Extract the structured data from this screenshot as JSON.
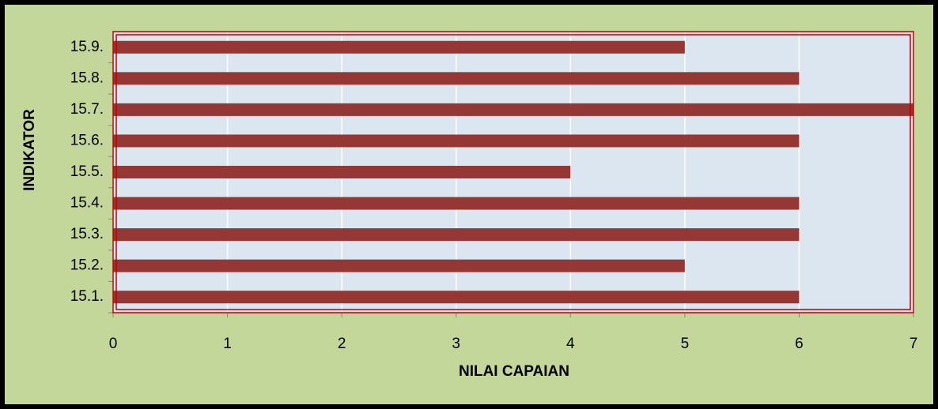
{
  "chart_data": {
    "type": "bar",
    "orientation": "horizontal",
    "x_label": "NILAI CAPAIAN",
    "y_label": "INDIKATOR",
    "categories": [
      "15.1.",
      "15.2.",
      "15.3.",
      "15.4.",
      "15.5.",
      "15.6.",
      "15.7.",
      "15.8.",
      "15.9."
    ],
    "values": [
      6,
      5,
      6,
      6,
      4,
      6,
      7,
      6,
      5
    ],
    "color": "#953735",
    "xlim": [
      0,
      7
    ],
    "xticks": [
      0,
      1,
      2,
      3,
      4,
      5,
      6,
      7
    ],
    "grid": true
  }
}
